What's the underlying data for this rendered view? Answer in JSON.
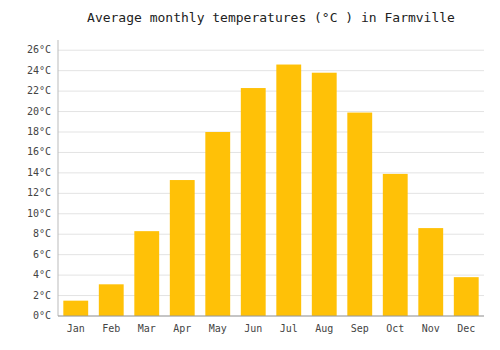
{
  "chart_data": {
    "type": "bar",
    "title": "Average monthly temperatures (°C ) in Farmville",
    "categories": [
      "Jan",
      "Feb",
      "Mar",
      "Apr",
      "May",
      "Jun",
      "Jul",
      "Aug",
      "Sep",
      "Oct",
      "Nov",
      "Dec"
    ],
    "values": [
      1.5,
      3.1,
      8.3,
      13.3,
      18.0,
      22.3,
      24.6,
      23.8,
      19.9,
      13.9,
      8.6,
      3.8
    ],
    "color": "#FFC107",
    "ylim": [
      0,
      27
    ],
    "yticks": [
      {
        "value": 0,
        "label": "0°C"
      },
      {
        "value": 2,
        "label": "2°C"
      },
      {
        "value": 4,
        "label": "4°C"
      },
      {
        "value": 6,
        "label": "6°C"
      },
      {
        "value": 8,
        "label": "8°C"
      },
      {
        "value": 10,
        "label": "10°C"
      },
      {
        "value": 12,
        "label": "12°C"
      },
      {
        "value": 14,
        "label": "14°C"
      },
      {
        "value": 16,
        "label": "16°C"
      },
      {
        "value": 18,
        "label": "18°C"
      },
      {
        "value": 20,
        "label": "20°C"
      },
      {
        "value": 22,
        "label": "22°C"
      },
      {
        "value": 24,
        "label": "24°C"
      },
      {
        "value": 26,
        "label": "26°C"
      }
    ],
    "grid": true
  }
}
